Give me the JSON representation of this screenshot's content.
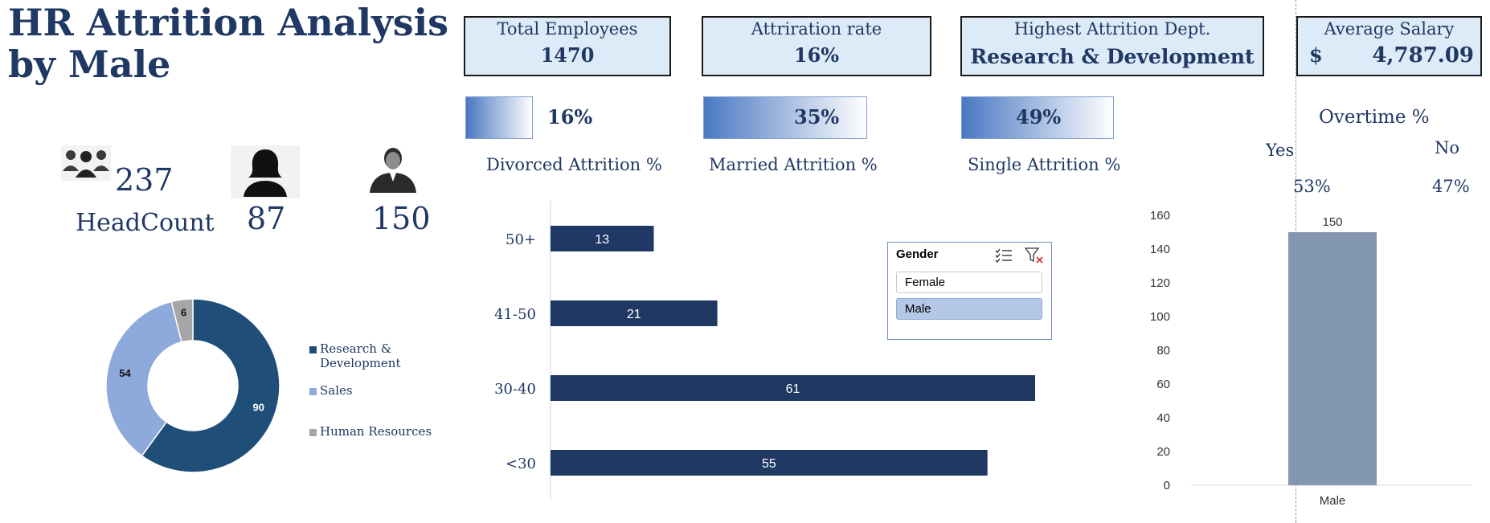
{
  "title_line1": "HR Attrition Analysis",
  "title_line2": "by Male",
  "kpis": {
    "total_employees": {
      "label": "Total Employees",
      "value": "1470"
    },
    "attrition_rate": {
      "label": "Attriration rate",
      "value": "16%"
    },
    "highest_dept": {
      "label": "Highest Attrition Dept.",
      "value": "Research & Development"
    },
    "avg_salary": {
      "label": "Average Salary",
      "currency": "$",
      "value": "4,787.09"
    }
  },
  "marital": {
    "divorced": {
      "value": "16%",
      "label": "Divorced Attrition %",
      "fill": 0.16
    },
    "married": {
      "value": "35%",
      "label": "Married Attrition %",
      "fill": 0.35
    },
    "single": {
      "value": "49%",
      "label": "Single Attrition %",
      "fill": 0.49
    }
  },
  "overtime": {
    "title": "Overtime %",
    "yes_label": "Yes",
    "no_label": "No",
    "yes_value": "53%",
    "no_value": "47%"
  },
  "headcount": {
    "total": "237",
    "label": "HeadCount",
    "female": "87",
    "male": "150",
    "icons": [
      "group-icon",
      "female-user-icon",
      "male-user-icon"
    ]
  },
  "slicer": {
    "title": "Gender",
    "options": [
      "Female",
      "Male"
    ],
    "selected": "Male"
  },
  "colors": {
    "navy": "#1f3864",
    "rd": "#1f4e79",
    "sales": "#8eaadb",
    "hr": "#a6a6a6",
    "bar": "#1f3864",
    "male_bar": "#8497b0"
  },
  "chart_data": [
    {
      "type": "pie",
      "variant": "donut",
      "categories": [
        "Research & Development",
        "Sales",
        "Human Resources"
      ],
      "values": [
        90,
        54,
        6
      ],
      "legend": "right"
    },
    {
      "type": "bar",
      "orientation": "horizontal",
      "categories": [
        "50+",
        "41-50",
        "30-40",
        "<30"
      ],
      "values": [
        13,
        21,
        61,
        55
      ],
      "xlim": [
        0,
        70
      ],
      "grid": false
    },
    {
      "type": "bar",
      "categories": [
        "Male"
      ],
      "values": [
        150
      ],
      "ylim": [
        0,
        160
      ],
      "yticks": [
        0,
        20,
        40,
        60,
        80,
        100,
        120,
        140,
        160
      ],
      "grid": false
    }
  ]
}
